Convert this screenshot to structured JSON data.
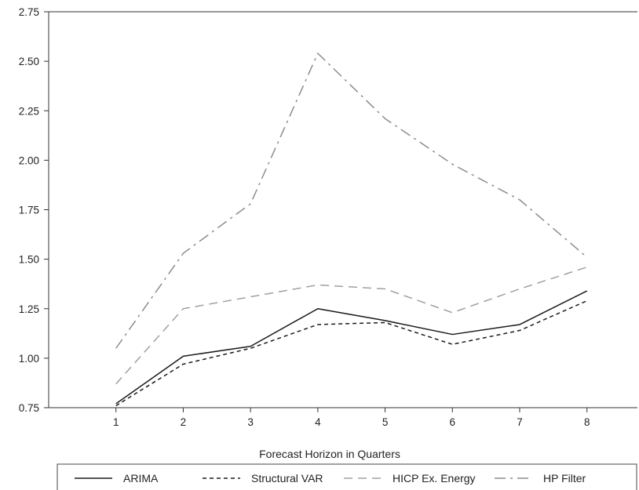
{
  "chart_data": {
    "type": "line",
    "title": "",
    "xlabel": "Forecast Horizon in Quarters",
    "ylabel": "",
    "x": [
      1,
      2,
      3,
      4,
      5,
      6,
      7,
      8
    ],
    "xticks": [
      "1",
      "2",
      "3",
      "4",
      "5",
      "6",
      "7",
      "8"
    ],
    "xlim": [
      0.0,
      8.75
    ],
    "ylim": [
      0.75,
      2.75
    ],
    "yticks": [
      "0.75",
      "1.00",
      "1.25",
      "1.50",
      "1.75",
      "2.00",
      "2.25",
      "2.50",
      "2.75"
    ],
    "grid": false,
    "legend_position": "bottom",
    "series": [
      {
        "name": "ARIMA",
        "style": "solid",
        "color": "#1a1a1a",
        "values": [
          0.77,
          1.01,
          1.06,
          1.25,
          1.19,
          1.12,
          1.17,
          1.34
        ]
      },
      {
        "name": "Structural VAR",
        "style": "dashed",
        "color": "#1a1a1a",
        "values": [
          0.76,
          0.97,
          1.05,
          1.17,
          1.18,
          1.07,
          1.14,
          1.29
        ]
      },
      {
        "name": "HICP Ex. Energy",
        "style": "longdash",
        "color": "#a0a0a0",
        "values": [
          0.87,
          1.25,
          1.31,
          1.37,
          1.35,
          1.23,
          1.35,
          1.46
        ]
      },
      {
        "name": "HP Filter",
        "style": "dashdot",
        "color": "#8c8c8c",
        "values": [
          1.05,
          1.53,
          1.78,
          2.54,
          2.21,
          1.98,
          1.8,
          1.51
        ]
      }
    ]
  }
}
